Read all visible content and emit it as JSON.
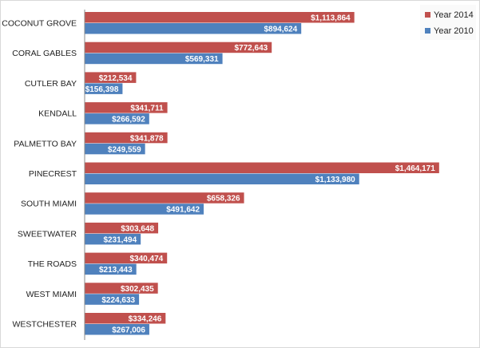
{
  "chart_data": {
    "type": "bar",
    "orientation": "horizontal",
    "title": "",
    "xlabel": "",
    "ylabel": "",
    "categories": [
      "COCONUT GROVE",
      "CORAL GABLES",
      "CUTLER BAY",
      "KENDALL",
      "PALMETTO BAY",
      "PINECREST",
      "SOUTH MIAMI",
      "SWEETWATER",
      "THE ROADS",
      "WEST MIAMI",
      "WESTCHESTER"
    ],
    "series": [
      {
        "name": "Year 2014",
        "color": "#c0504d",
        "values": [
          1113864,
          772643,
          212534,
          341711,
          341878,
          1464171,
          658326,
          303648,
          340474,
          302435,
          334246
        ],
        "labels": [
          "$1,113,864",
          "$772,643",
          "$212,534",
          "$341,711",
          "$341,878",
          "$1,464,171",
          "$658,326",
          "$303,648",
          "$340,474",
          "$302,435",
          "$334,246"
        ]
      },
      {
        "name": "Year 2010",
        "color": "#4f81bd",
        "values": [
          894624,
          569331,
          156398,
          266592,
          249559,
          1133980,
          491642,
          231494,
          213443,
          224633,
          267006
        ],
        "labels": [
          "$894,624",
          "$569,331",
          "$156,398",
          "$266,592",
          "$249,559",
          "$1,133,980",
          "$491,642",
          "$231,494",
          "$213,443",
          "$224,633",
          "$267,006"
        ]
      }
    ],
    "xlim": [
      0,
      1600000
    ],
    "grid": false,
    "legend_position": "top-right"
  }
}
